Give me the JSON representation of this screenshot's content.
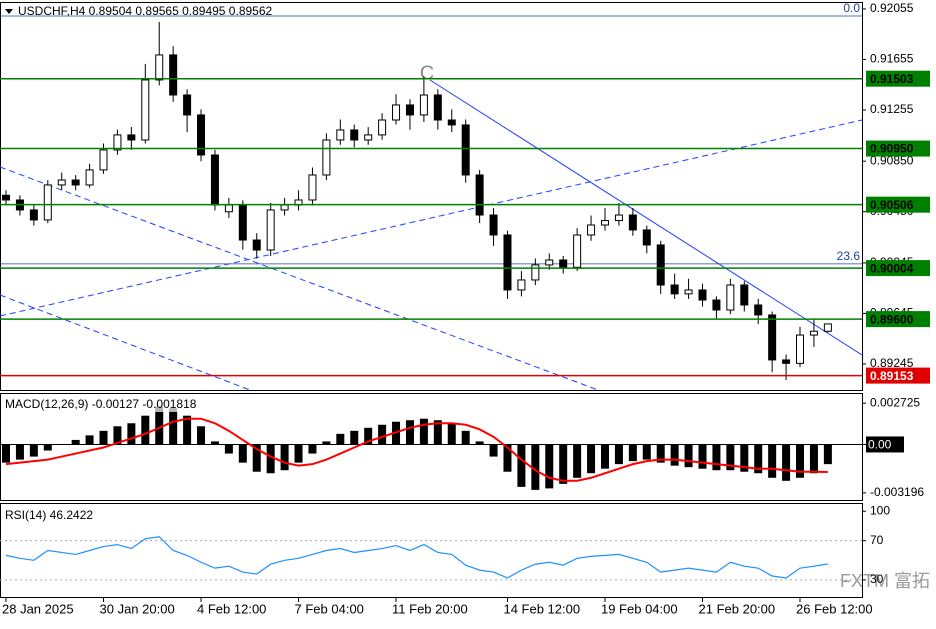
{
  "chart_data": [
    {
      "type": "candlestick",
      "title": "USDCHF,H4  0.89504 0.89565 0.89495 0.89562",
      "categories": [
        "28 Jan 2025",
        null,
        null,
        null,
        null,
        null,
        null,
        "30 Jan 20:00",
        null,
        null,
        null,
        null,
        null,
        null,
        "4 Feb 12:00",
        null,
        null,
        null,
        null,
        null,
        null,
        "7 Feb 04:00",
        null,
        null,
        null,
        null,
        null,
        null,
        "11 Feb 20:00",
        null,
        null,
        null,
        null,
        null,
        null,
        null,
        "14 Feb 12:00",
        null,
        null,
        null,
        null,
        null,
        null,
        "19 Feb 04:00",
        null,
        null,
        null,
        null,
        null,
        null,
        "21 Feb 20:00",
        null,
        null,
        null,
        null,
        null,
        null,
        "26 Feb 12:00",
        null,
        null
      ],
      "open": [
        0.9058,
        0.90543,
        0.90464,
        0.90385,
        0.90662,
        0.90701,
        0.90662,
        0.90781,
        0.90939,
        0.91058,
        0.91018,
        0.91493,
        0.91691,
        0.91374,
        0.91216,
        0.90899,
        0.9045,
        0.90503,
        0.90226,
        0.90147,
        0.90464,
        0.90503,
        0.90543,
        0.90741,
        0.91018,
        0.91097,
        0.91018,
        0.91058,
        0.91176,
        0.91295,
        0.91216,
        0.91374,
        0.91176,
        0.91137,
        0.90741,
        0.90424,
        0.90266,
        0.89831,
        0.8991,
        0.90029,
        0.90068,
        0.9001,
        0.90266,
        0.90345,
        0.9038,
        0.90424,
        0.90306,
        0.90187,
        0.8987,
        0.898,
        0.89831,
        0.89751,
        0.89672,
        0.8987,
        0.89712,
        0.89633,
        0.89277,
        0.8925,
        0.89474,
        0.89504
      ],
      "high": [
        0.9062,
        0.9058,
        0.905,
        0.907,
        0.9076,
        0.9074,
        0.9083,
        0.9099,
        0.911,
        0.9112,
        0.9162,
        0.91952,
        0.9176,
        0.9142,
        0.9126,
        0.9094,
        0.9056,
        0.9054,
        0.9028,
        0.9052,
        0.9056,
        0.9062,
        0.908,
        0.9107,
        0.9118,
        0.9114,
        0.9112,
        0.9123,
        0.9138,
        0.9134,
        0.9152,
        0.9142,
        0.9126,
        0.9118,
        0.9078,
        0.9048,
        0.903,
        0.8998,
        0.9008,
        0.9012,
        0.901,
        0.9032,
        0.9042,
        0.9048,
        0.9052,
        0.9048,
        0.9034,
        0.9022,
        0.8996,
        0.8992,
        0.8988,
        0.8978,
        0.8992,
        0.899,
        0.8976,
        0.8966,
        0.8932,
        0.8954,
        0.896,
        0.89565
      ],
      "low": [
        0.905,
        0.9042,
        0.9034,
        0.9036,
        0.9062,
        0.9062,
        0.9064,
        0.9075,
        0.909,
        0.9094,
        0.9099,
        0.9145,
        0.9132,
        0.9108,
        0.9085,
        0.9046,
        0.904,
        0.9015,
        0.9008,
        0.901,
        0.9042,
        0.9046,
        0.905,
        0.907,
        0.9098,
        0.9096,
        0.9098,
        0.9102,
        0.9114,
        0.911,
        0.9116,
        0.911,
        0.9108,
        0.9068,
        0.9036,
        0.9018,
        0.8976,
        0.8978,
        0.8987,
        0.8999,
        0.8996,
        0.8998,
        0.9022,
        0.903,
        0.9034,
        0.9026,
        0.9012,
        0.898,
        0.8976,
        0.8976,
        0.897,
        0.896,
        0.8964,
        0.8966,
        0.8956,
        0.8918,
        0.89118,
        0.8922,
        0.8938,
        0.89495
      ],
      "close": [
        0.90543,
        0.90464,
        0.90385,
        0.90662,
        0.90701,
        0.90662,
        0.90781,
        0.90939,
        0.91058,
        0.91018,
        0.91493,
        0.91691,
        0.91374,
        0.91216,
        0.90899,
        0.90503,
        0.90503,
        0.90226,
        0.90147,
        0.90464,
        0.90503,
        0.90543,
        0.90741,
        0.91018,
        0.91097,
        0.91018,
        0.91058,
        0.91176,
        0.91295,
        0.91216,
        0.91374,
        0.91176,
        0.91137,
        0.90741,
        0.90424,
        0.90266,
        0.89831,
        0.8991,
        0.90029,
        0.90068,
        0.9001,
        0.90266,
        0.90345,
        0.9038,
        0.90424,
        0.90306,
        0.90187,
        0.8987,
        0.898,
        0.89831,
        0.89751,
        0.89672,
        0.8987,
        0.89712,
        0.89633,
        0.89277,
        0.8925,
        0.89474,
        0.89504,
        0.89562
      ],
      "ylim": [
        0.89039,
        0.9211
      ],
      "yticks": [
        0.92055,
        0.91655,
        0.91255,
        {
          "value": 0.9085,
          "label": "0.90850"
        },
        {
          "value": 0.9045,
          "label": "0.90450"
        },
        0.90045,
        0.89645,
        0.89245
      ],
      "levels": [
        {
          "value": 0.91503,
          "color": "#008000"
        },
        {
          "value": 0.9095,
          "label": "0.90950",
          "color": "#008000"
        },
        {
          "value": 0.90506,
          "color": "#008000"
        },
        {
          "value": 0.90004,
          "color": "#008000"
        },
        {
          "value": 0.896,
          "label": "0.89600",
          "color": "#008000"
        },
        {
          "value": 0.89153,
          "color": "#e00000"
        }
      ],
      "fib": [
        {
          "label": "0.0",
          "price": 0.91999
        },
        {
          "label": "23.6",
          "price": 0.90037
        }
      ],
      "annotation": "C",
      "watermark": "FXTM 富拓"
    },
    {
      "type": "macd",
      "title": "MACD(12,26,9) -0.00127 -0.001818",
      "histogram": [
        -0.0012,
        -0.001,
        -0.0008,
        -0.0004,
        0.0,
        0.0003,
        0.0006,
        0.0009,
        0.0012,
        0.0014,
        0.0019,
        0.0025,
        0.0024,
        0.0019,
        0.0012,
        0.0002,
        -0.0006,
        -0.0012,
        -0.0018,
        -0.0019,
        -0.0017,
        -0.0012,
        -0.0006,
        0.0002,
        0.0007,
        0.0009,
        0.0011,
        0.0013,
        0.0015,
        0.0016,
        0.0017,
        0.0016,
        0.0014,
        0.0009,
        0.0002,
        -0.0008,
        -0.0018,
        -0.0028,
        -0.003,
        -0.0029,
        -0.0026,
        -0.0022,
        -0.0019,
        -0.0016,
        -0.0013,
        -0.0011,
        -0.001,
        -0.0012,
        -0.0014,
        -0.0015,
        -0.0016,
        -0.0017,
        -0.0017,
        -0.0018,
        -0.0019,
        -0.0022,
        -0.0024,
        -0.0022,
        -0.0019,
        -0.0013
      ],
      "signal": [
        -0.0013,
        -0.0012,
        -0.0011,
        -0.001,
        -0.0008,
        -0.0006,
        -0.0004,
        -0.0002,
        0.0001,
        0.0004,
        0.0007,
        0.0011,
        0.0015,
        0.0017,
        0.0017,
        0.0014,
        0.0009,
        0.0003,
        -0.0003,
        -0.0008,
        -0.0012,
        -0.0014,
        -0.0013,
        -0.001,
        -0.0006,
        -0.0002,
        0.0002,
        0.0005,
        0.0008,
        0.0011,
        0.0013,
        0.0014,
        0.0014,
        0.0013,
        0.001,
        0.0005,
        -0.0002,
        -0.001,
        -0.0017,
        -0.0022,
        -0.0024,
        -0.0024,
        -0.0022,
        -0.0019,
        -0.0016,
        -0.0013,
        -0.0011,
        -0.001,
        -0.001,
        -0.0011,
        -0.0012,
        -0.0013,
        -0.0014,
        -0.0015,
        -0.0016,
        -0.0016,
        -0.0017,
        -0.0018,
        -0.0018,
        -0.001818
      ],
      "histogram_color": "#000000",
      "signal_color": "#ff0000",
      "ylim": [
        -0.003667,
        0.003398
      ],
      "yticks": [
        0.002725,
        {
          "value": 0,
          "label": "0.00"
        },
        -0.003196
      ]
    },
    {
      "type": "line",
      "title": "RSI(14) 46.2422",
      "values": [
        55,
        52,
        50,
        60,
        58,
        56,
        60,
        64,
        66,
        62,
        72,
        74,
        60,
        55,
        48,
        42,
        44,
        38,
        36,
        46,
        50,
        52,
        56,
        60,
        62,
        58,
        60,
        62,
        65,
        60,
        66,
        58,
        56,
        45,
        40,
        38,
        32,
        40,
        46,
        48,
        45,
        52,
        54,
        55,
        56,
        52,
        48,
        38,
        40,
        42,
        40,
        38,
        48,
        44,
        42,
        34,
        32,
        42,
        44,
        46.2422
      ],
      "color": "#1e90ff",
      "ylim": [
        12.6,
        108.4
      ],
      "yticks": [
        100,
        70,
        30
      ],
      "levels": [
        70,
        30
      ]
    }
  ]
}
